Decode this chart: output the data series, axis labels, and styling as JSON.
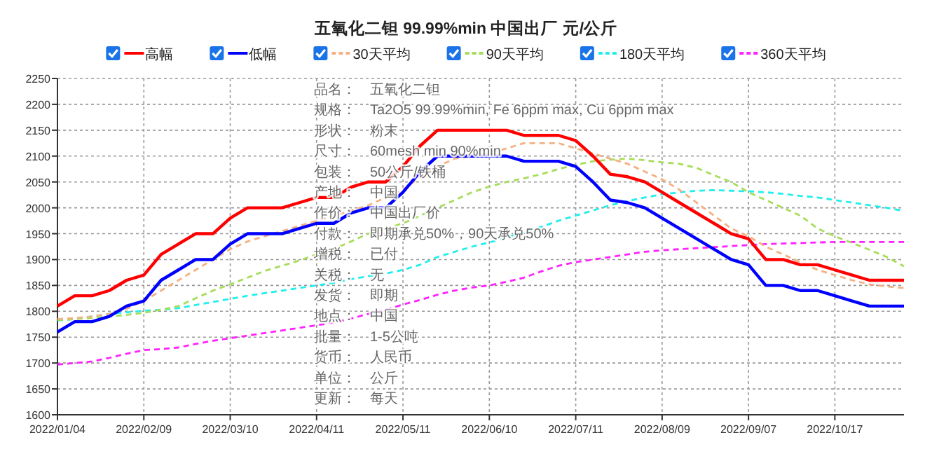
{
  "chart_data": {
    "type": "line",
    "title": "五氧化二钽 99.99%min 中国出厂 元/公斤",
    "categories": [
      "2022/01/04",
      null,
      null,
      null,
      null,
      "2022/02/09",
      null,
      null,
      null,
      null,
      "2022/03/10",
      null,
      null,
      null,
      null,
      "2022/04/11",
      null,
      null,
      null,
      null,
      "2022/05/11",
      null,
      null,
      null,
      null,
      "2022/06/10",
      null,
      null,
      null,
      null,
      "2022/07/11",
      null,
      null,
      null,
      null,
      "2022/08/09",
      null,
      null,
      null,
      null,
      "2022/09/07",
      null,
      null,
      null,
      null,
      "2022/10/17",
      null,
      null,
      null,
      null
    ],
    "series": [
      {
        "name": "高幅",
        "color": "#ff0000",
        "line_style": "solid",
        "values": [
          1810,
          1830,
          1830,
          1840,
          1860,
          1870,
          1910,
          1930,
          1950,
          1950,
          1980,
          2000,
          2000,
          2000,
          2010,
          2020,
          2020,
          2040,
          2050,
          2050,
          2080,
          2120,
          2150,
          2150,
          2150,
          2150,
          2150,
          2140,
          2140,
          2140,
          2130,
          2100,
          2065,
          2060,
          2050,
          2030,
          2010,
          1990,
          1970,
          1950,
          1940,
          1900,
          1900,
          1890,
          1890,
          1880,
          1870,
          1860,
          1860,
          1860
        ]
      },
      {
        "name": "低幅",
        "color": "#0000ff",
        "line_style": "solid",
        "values": [
          1760,
          1780,
          1780,
          1790,
          1810,
          1820,
          1860,
          1880,
          1900,
          1900,
          1930,
          1950,
          1950,
          1950,
          1960,
          1970,
          1970,
          1990,
          2000,
          2000,
          2030,
          2070,
          2100,
          2100,
          2100,
          2100,
          2100,
          2090,
          2090,
          2090,
          2080,
          2050,
          2015,
          2010,
          2000,
          1980,
          1960,
          1940,
          1920,
          1900,
          1890,
          1850,
          1850,
          1840,
          1840,
          1830,
          1820,
          1810,
          1810,
          1810
        ]
      },
      {
        "name": "30天平均",
        "color": "#f4b183",
        "line_style": "dashed",
        "values": [
          1785,
          1787,
          1790,
          1795,
          1805,
          1820,
          1840,
          1860,
          1880,
          1900,
          1920,
          1935,
          1945,
          1955,
          1965,
          1975,
          1985,
          1995,
          2005,
          2020,
          2035,
          2060,
          2080,
          2095,
          2100,
          2105,
          2115,
          2125,
          2125,
          2125,
          2115,
          2105,
          2095,
          2085,
          2070,
          2055,
          2035,
          2010,
          1985,
          1960,
          1945,
          1925,
          1910,
          1895,
          1880,
          1870,
          1860,
          1852,
          1848,
          1845
        ]
      },
      {
        "name": "90天平均",
        "color": "#a6dd5a",
        "line_style": "dashed",
        "values": [
          1783,
          1785,
          1787,
          1790,
          1793,
          1797,
          1803,
          1810,
          1825,
          1840,
          1852,
          1865,
          1878,
          1888,
          1898,
          1910,
          1920,
          1935,
          1950,
          1960,
          1970,
          1985,
          2000,
          2015,
          2030,
          2041,
          2050,
          2057,
          2065,
          2075,
          2083,
          2090,
          2093,
          2095,
          2092,
          2088,
          2085,
          2077,
          2063,
          2050,
          2030,
          2015,
          2000,
          1985,
          1960,
          1945,
          1932,
          1919,
          1905,
          1887
        ]
      },
      {
        "name": "180天平均",
        "color": "#22eeee",
        "line_style": "dashed",
        "values": [
          1782,
          1785,
          1790,
          1795,
          1798,
          1801,
          1803,
          1806,
          1812,
          1818,
          1824,
          1830,
          1835,
          1840,
          1845,
          1850,
          1855,
          1862,
          1868,
          1873,
          1880,
          1890,
          1905,
          1915,
          1925,
          1933,
          1943,
          1953,
          1963,
          1975,
          1985,
          1995,
          2005,
          2013,
          2020,
          2026,
          2030,
          2033,
          2034,
          2033,
          2032,
          2030,
          2027,
          2023,
          2020,
          2015,
          2010,
          2005,
          2000,
          1994
        ]
      },
      {
        "name": "360天平均",
        "color": "#ff22ff",
        "line_style": "dashed",
        "values": [
          1697,
          1700,
          1703,
          1710,
          1718,
          1725,
          1727,
          1730,
          1737,
          1743,
          1748,
          1753,
          1758,
          1763,
          1768,
          1773,
          1778,
          1786,
          1795,
          1803,
          1813,
          1822,
          1832,
          1840,
          1846,
          1850,
          1857,
          1865,
          1877,
          1888,
          1895,
          1900,
          1905,
          1910,
          1915,
          1918,
          1920,
          1922,
          1924,
          1926,
          1928,
          1930,
          1931,
          1932,
          1933,
          1934,
          1934,
          1934,
          1934,
          1934
        ]
      }
    ],
    "ylim": [
      1600,
      2250
    ],
    "yticks": [
      1600,
      1650,
      1700,
      1750,
      1800,
      1850,
      1900,
      1950,
      2000,
      2050,
      2100,
      2150,
      2200,
      2250
    ],
    "grid": true,
    "legend": "top",
    "annotations": [
      "品名：　五氧化二钽",
      "规格：　Ta2O5 99.99%min, Fe 6ppm max, Cu 6ppm max",
      "形状：　粉末",
      "尺寸：　60mesh min 90%min",
      "包装：　50公斤/铁桶",
      "产地：　中国",
      "作价：　中国出厂价",
      "付款：　即期承兑50%，90天承兑50%",
      "增税：　已付",
      "关税：　无",
      "发货：　即期",
      "地点：　中国",
      "批量：　1-5公吨",
      "货币：　人民币",
      "单位：　公斤",
      "更新：　每天"
    ]
  }
}
